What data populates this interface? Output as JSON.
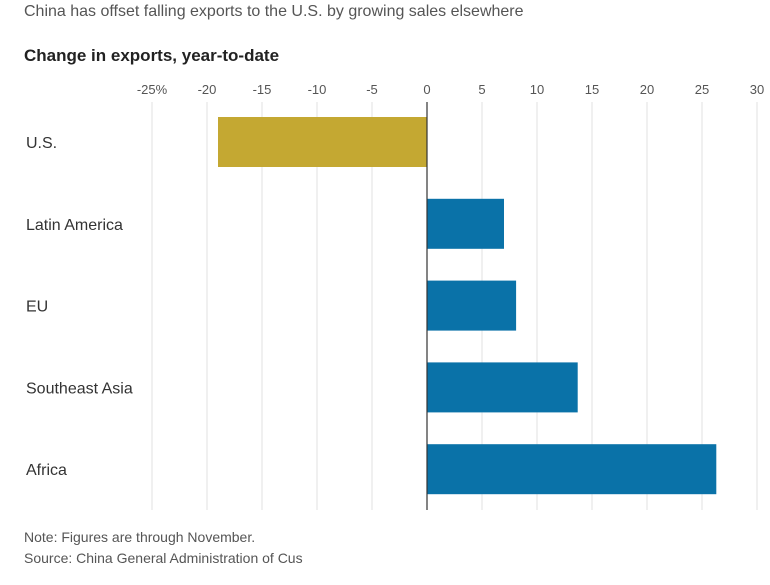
{
  "header": {
    "subtitle": "China has offset falling exports to the U.S. by growing sales elsewhere"
  },
  "footer": {
    "note": "Note: Figures are through November.",
    "source": "Source: China General Administration of Cus"
  },
  "colors": {
    "negative_bar": "#c4a832",
    "positive_bar": "#0a72a8",
    "grid": "#e2e2e2",
    "zero_line": "#333333"
  },
  "chart_data": {
    "type": "bar",
    "orientation": "horizontal",
    "title": "Change in exports, year-to-date",
    "xlabel": "",
    "ylabel": "",
    "categories": [
      "U.S.",
      "Latin America",
      "EU",
      "Southeast Asia",
      "Africa"
    ],
    "values": [
      -19,
      7,
      8.1,
      13.7,
      26.3
    ],
    "xlim": [
      -25,
      30
    ],
    "ticks": [
      -25,
      -20,
      -15,
      -10,
      -5,
      0,
      5,
      10,
      15,
      20,
      25,
      30
    ],
    "tick_labels": [
      "-25%",
      "-20",
      "-15",
      "-10",
      "-5",
      "0",
      "5",
      "10",
      "15",
      "20",
      "25",
      "30"
    ],
    "grid": true,
    "legend": "none"
  }
}
